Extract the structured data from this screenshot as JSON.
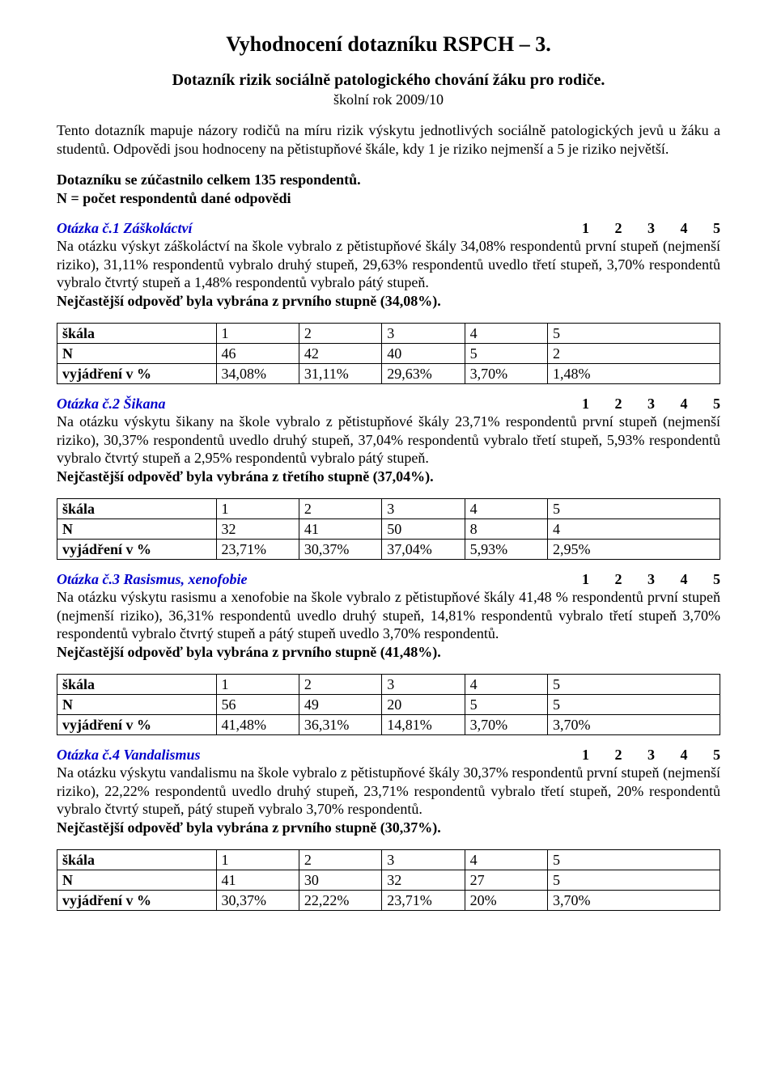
{
  "colors": {
    "text": "#000000",
    "link_blue": "#0000cc",
    "background": "#ffffff",
    "table_border": "#000000"
  },
  "typography": {
    "body_font": "Times New Roman",
    "body_size_pt": 13,
    "title_size_pt": 20,
    "subtitle_size_pt": 15
  },
  "header": {
    "title": "Vyhodnocení dotazníku RSPCH – 3.",
    "subtitle": "Dotazník rizik sociálně patologického chování žáku pro rodiče.",
    "schoolyear": "školní rok 2009/10"
  },
  "intro": {
    "p1": "Tento dotazník mapuje názory rodičů na míru rizik výskytu jednotlivých sociálně patologických jevů u žáku a studentů. Odpovědi jsou hodnoceny na pětistupňové škále, kdy 1 je riziko nejmenší a 5 je riziko největší.",
    "p2": "Dotazníku se zúčastnilo celkem 135 respondentů.",
    "p3": "N = počet respondentů dané odpovědi"
  },
  "scale_nums": "1       2       3       4       5",
  "table_row_labels": {
    "scale": "škála",
    "n": "N",
    "pct": "vyjádření v %"
  },
  "scale_headers": [
    "1",
    "2",
    "3",
    "4",
    "5"
  ],
  "questions": [
    {
      "title": "Otázka č.1 Záškoláctví",
      "body": "Na otázku výskyt záškoláctví na škole vybralo z pětistupňové škály 34,08% respondentů první stupeň (nejmenší riziko), 31,11% respondentů vybralo druhý stupeň, 29,63% respondentů uvedlo třetí stupeň, 3,70% respondentů vybralo čtvrtý stupeň a 1,48% respondentů vybralo pátý stupeň.",
      "summary": "Nejčastější odpověď byla vybrána z prvního stupně (34,08%).",
      "n": [
        "46",
        "42",
        "40",
        "5",
        "2"
      ],
      "pct": [
        "34,08%",
        "31,11%",
        "29,63%",
        "3,70%",
        "1,48%"
      ]
    },
    {
      "title": "Otázka č.2 Šikana",
      "body": "Na otázku výskytu šikany na škole vybralo z pětistupňové škály 23,71% respondentů první stupeň (nejmenší riziko), 30,37% respondentů uvedlo druhý stupeň, 37,04% respondentů vybralo třetí stupeň, 5,93% respondentů vybralo čtvrtý stupeň a 2,95% respondentů vybralo pátý stupeň.",
      "summary": "Nejčastější odpověď byla vybrána z třetího stupně (37,04%).",
      "n": [
        "32",
        "41",
        "50",
        "8",
        "4"
      ],
      "pct": [
        "23,71%",
        "30,37%",
        "37,04%",
        "5,93%",
        "2,95%"
      ]
    },
    {
      "title": "Otázka č.3 Rasismus, xenofobie",
      "body": "Na otázku výskytu rasismu a xenofobie na škole vybralo z pětistupňové škály 41,48 % respondentů první stupeň (nejmenší riziko), 36,31% respondentů uvedlo druhý stupeň, 14,81% respondentů vybralo třetí stupeň 3,70% respondentů vybralo čtvrtý stupeň a pátý stupeň uvedlo 3,70% respondentů.",
      "summary": "Nejčastější odpověď byla vybrána z prvního stupně (41,48%).",
      "n": [
        "56",
        "49",
        "20",
        "5",
        "5"
      ],
      "pct": [
        "41,48%",
        "36,31%",
        "14,81%",
        "3,70%",
        "3,70%"
      ]
    },
    {
      "title": "Otázka č.4 Vandalismus",
      "body": "Na otázku výskytu vandalismu na škole vybralo z pětistupňové škály 30,37% respondentů první stupeň (nejmenší riziko), 22,22% respondentů uvedlo druhý stupeň, 23,71% respondentů vybralo třetí stupeň, 20% respondentů vybralo čtvrtý stupeň, pátý stupeň vybralo 3,70% respondentů.",
      "summary": "Nejčastější odpověď byla vybrána z prvního stupně (30,37%).",
      "n": [
        "41",
        "30",
        "32",
        "27",
        "5"
      ],
      "pct": [
        "30,37%",
        "22,22%",
        "23,71%",
        "20%",
        "3,70%"
      ]
    }
  ]
}
